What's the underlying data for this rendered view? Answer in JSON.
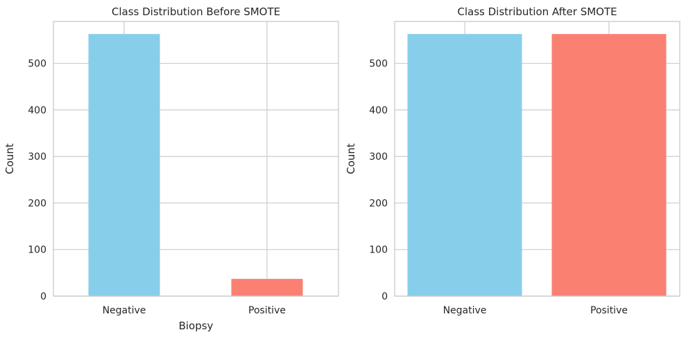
{
  "colors": {
    "negative": "#87CEEB",
    "positive": "#FA8072",
    "grid": "#cccccc",
    "text": "#262626"
  },
  "chart_data": [
    {
      "type": "bar",
      "title": "Class Distribution Before SMOTE",
      "xlabel": "Biopsy",
      "ylabel": "Count",
      "categories": [
        "Negative",
        "Positive"
      ],
      "values": [
        563,
        37
      ],
      "ylim": [
        0,
        590
      ],
      "yticks": [
        0,
        100,
        200,
        300,
        400,
        500
      ],
      "grid": true
    },
    {
      "type": "bar",
      "title": "Class Distribution After SMOTE",
      "xlabel": "",
      "ylabel": "Count",
      "categories": [
        "Negative",
        "Positive"
      ],
      "values": [
        563,
        563
      ],
      "ylim": [
        0,
        590
      ],
      "yticks": [
        0,
        100,
        200,
        300,
        400,
        500
      ],
      "grid": true
    }
  ]
}
